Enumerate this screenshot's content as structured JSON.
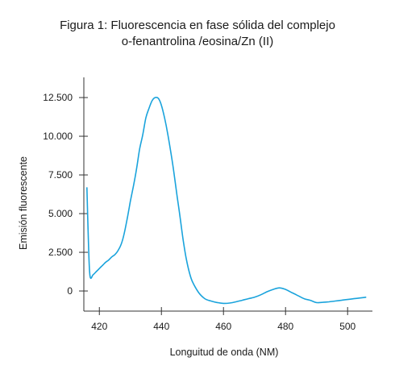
{
  "chart_data": {
    "type": "line",
    "title_line1": "Figura 1: Fluorescencia en fase sólida del complejo",
    "title_line2": "o-fenantrolina /eosina/Zn (II)",
    "xlabel": "Longuitud de onda (NM)",
    "ylabel": "Emisión fluorescente",
    "xlim": [
      415,
      508
    ],
    "ylim": [
      -1300,
      13700
    ],
    "x_ticks": [
      420,
      440,
      460,
      480,
      500
    ],
    "x_tick_labels": [
      "420",
      "440",
      "460",
      "480",
      "500"
    ],
    "y_ticks": [
      0,
      2500,
      5000,
      7500,
      10000,
      12500
    ],
    "y_tick_labels": [
      "0",
      "2.500",
      "5.000",
      "7.500",
      "10.000",
      "12.500"
    ],
    "line_color": "#1aa3dc",
    "grid": false,
    "series": [
      {
        "x": [
          416,
          416.5,
          417,
          418,
          419,
          420,
          421,
          422,
          423,
          424,
          425,
          426,
          427,
          428,
          429,
          430,
          431,
          432,
          433,
          434,
          435,
          436,
          437,
          438,
          439,
          440,
          441,
          442,
          443,
          444,
          445,
          446,
          447,
          448,
          449,
          450,
          452,
          454,
          456,
          458,
          460,
          462,
          464,
          466,
          468,
          470,
          472,
          474,
          476,
          478,
          480,
          482,
          484,
          486,
          488,
          490,
          492,
          494,
          496,
          498,
          500,
          502,
          504,
          506
        ],
        "y": [
          6700,
          3000,
          950,
          1050,
          1250,
          1450,
          1650,
          1850,
          2000,
          2200,
          2350,
          2600,
          3000,
          3700,
          4700,
          5800,
          6800,
          7900,
          9200,
          10100,
          11200,
          11800,
          12300,
          12500,
          12450,
          12000,
          11200,
          10200,
          9000,
          7700,
          6200,
          4800,
          3300,
          2100,
          1200,
          600,
          -100,
          -500,
          -650,
          -750,
          -800,
          -780,
          -700,
          -600,
          -500,
          -400,
          -250,
          -50,
          100,
          200,
          100,
          -100,
          -300,
          -500,
          -600,
          -750,
          -730,
          -700,
          -650,
          -600,
          -550,
          -500,
          -450,
          -400
        ]
      }
    ]
  }
}
